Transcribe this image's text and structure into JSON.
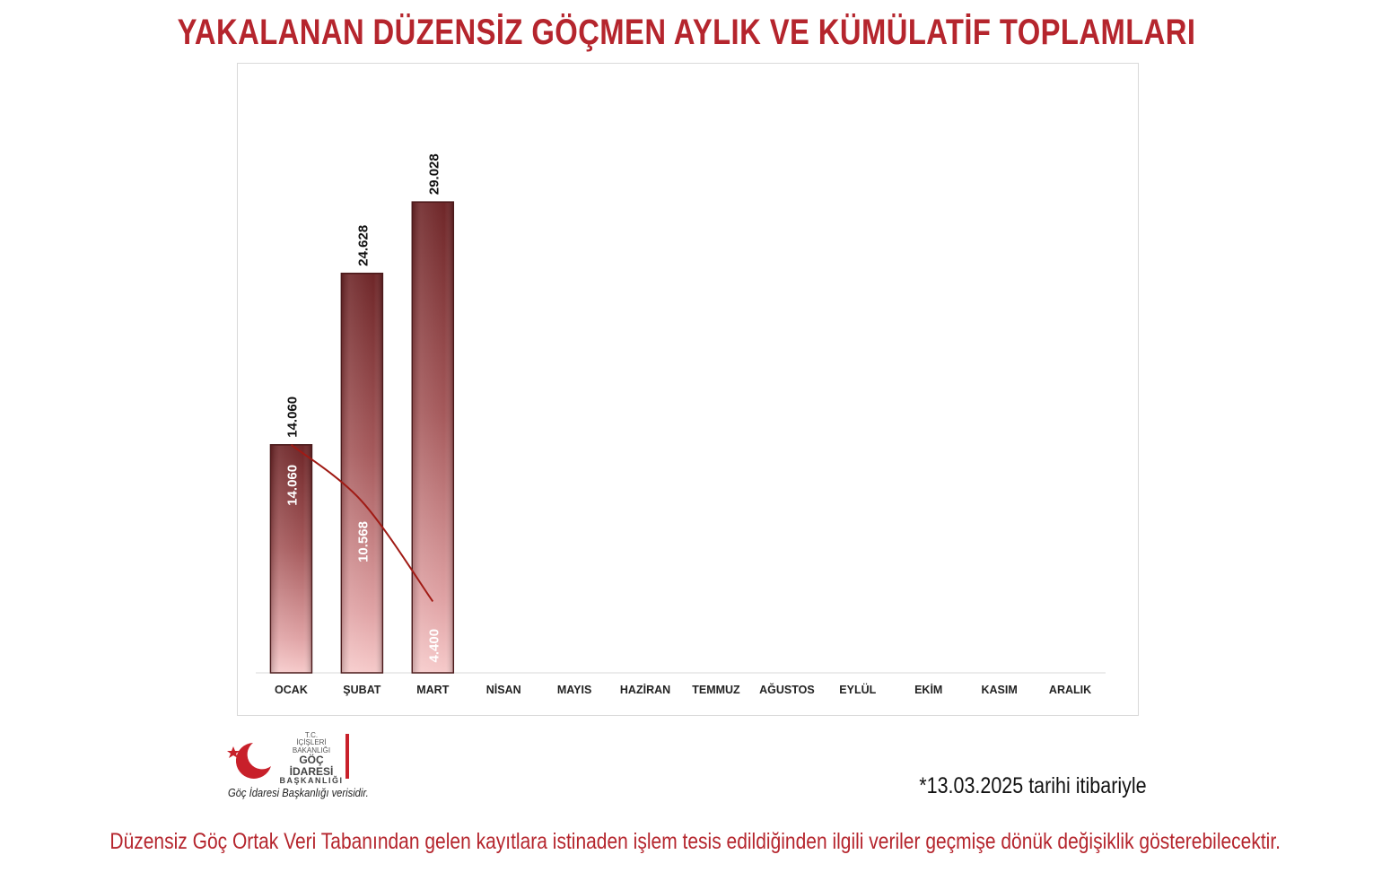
{
  "title": "YAKALANAN DÜZENSİZ GÖÇMEN AYLIK VE KÜMÜLATİF TOPLAMLARI",
  "chart_data": {
    "type": "bar",
    "categories": [
      "OCAK",
      "ŞUBAT",
      "MART",
      "NİSAN",
      "MAYIS",
      "HAZİRAN",
      "TEMMUZ",
      "AĞUSTOS",
      "EYLÜL",
      "EKİM",
      "KASIM",
      "ARALIK"
    ],
    "series": [
      {
        "kind": "bar",
        "values": [
          14060,
          24628,
          29028,
          null,
          null,
          null,
          null,
          null,
          null,
          null,
          null,
          null
        ],
        "labels": [
          "14.060",
          "24.628",
          "29.028",
          "",
          "",
          "",
          "",
          "",
          "",
          "",
          "",
          ""
        ],
        "color": "#7a2c2e"
      },
      {
        "kind": "line",
        "values": [
          14060,
          10568,
          4400,
          null,
          null,
          null,
          null,
          null,
          null,
          null,
          null,
          null
        ],
        "labels": [
          "14.060",
          "10.568",
          "4.400",
          "",
          "",
          "",
          "",
          "",
          "",
          "",
          "",
          ""
        ],
        "color": "#a01a14"
      }
    ],
    "ylim": [
      0,
      37000
    ],
    "xlabel": "",
    "ylabel": "",
    "grid": false,
    "legend": "none"
  },
  "logo": {
    "line1": "T.C.",
    "line2": "İÇİŞLERİ BAKANLIĞI",
    "line3": "GÖÇ İDARESİ",
    "line4": "BAŞKANLIĞI"
  },
  "source_note": "Göç İdaresi Başkanlığı verisidir.",
  "date_note": "*13.03.2025 tarihi itibariyle",
  "footer_note": "Düzensiz Göç Ortak Veri Tabanından gelen kayıtlara istinaden işlem tesis edildiğinden ilgili veriler geçmişe dönük değişiklik gösterebilecektir."
}
